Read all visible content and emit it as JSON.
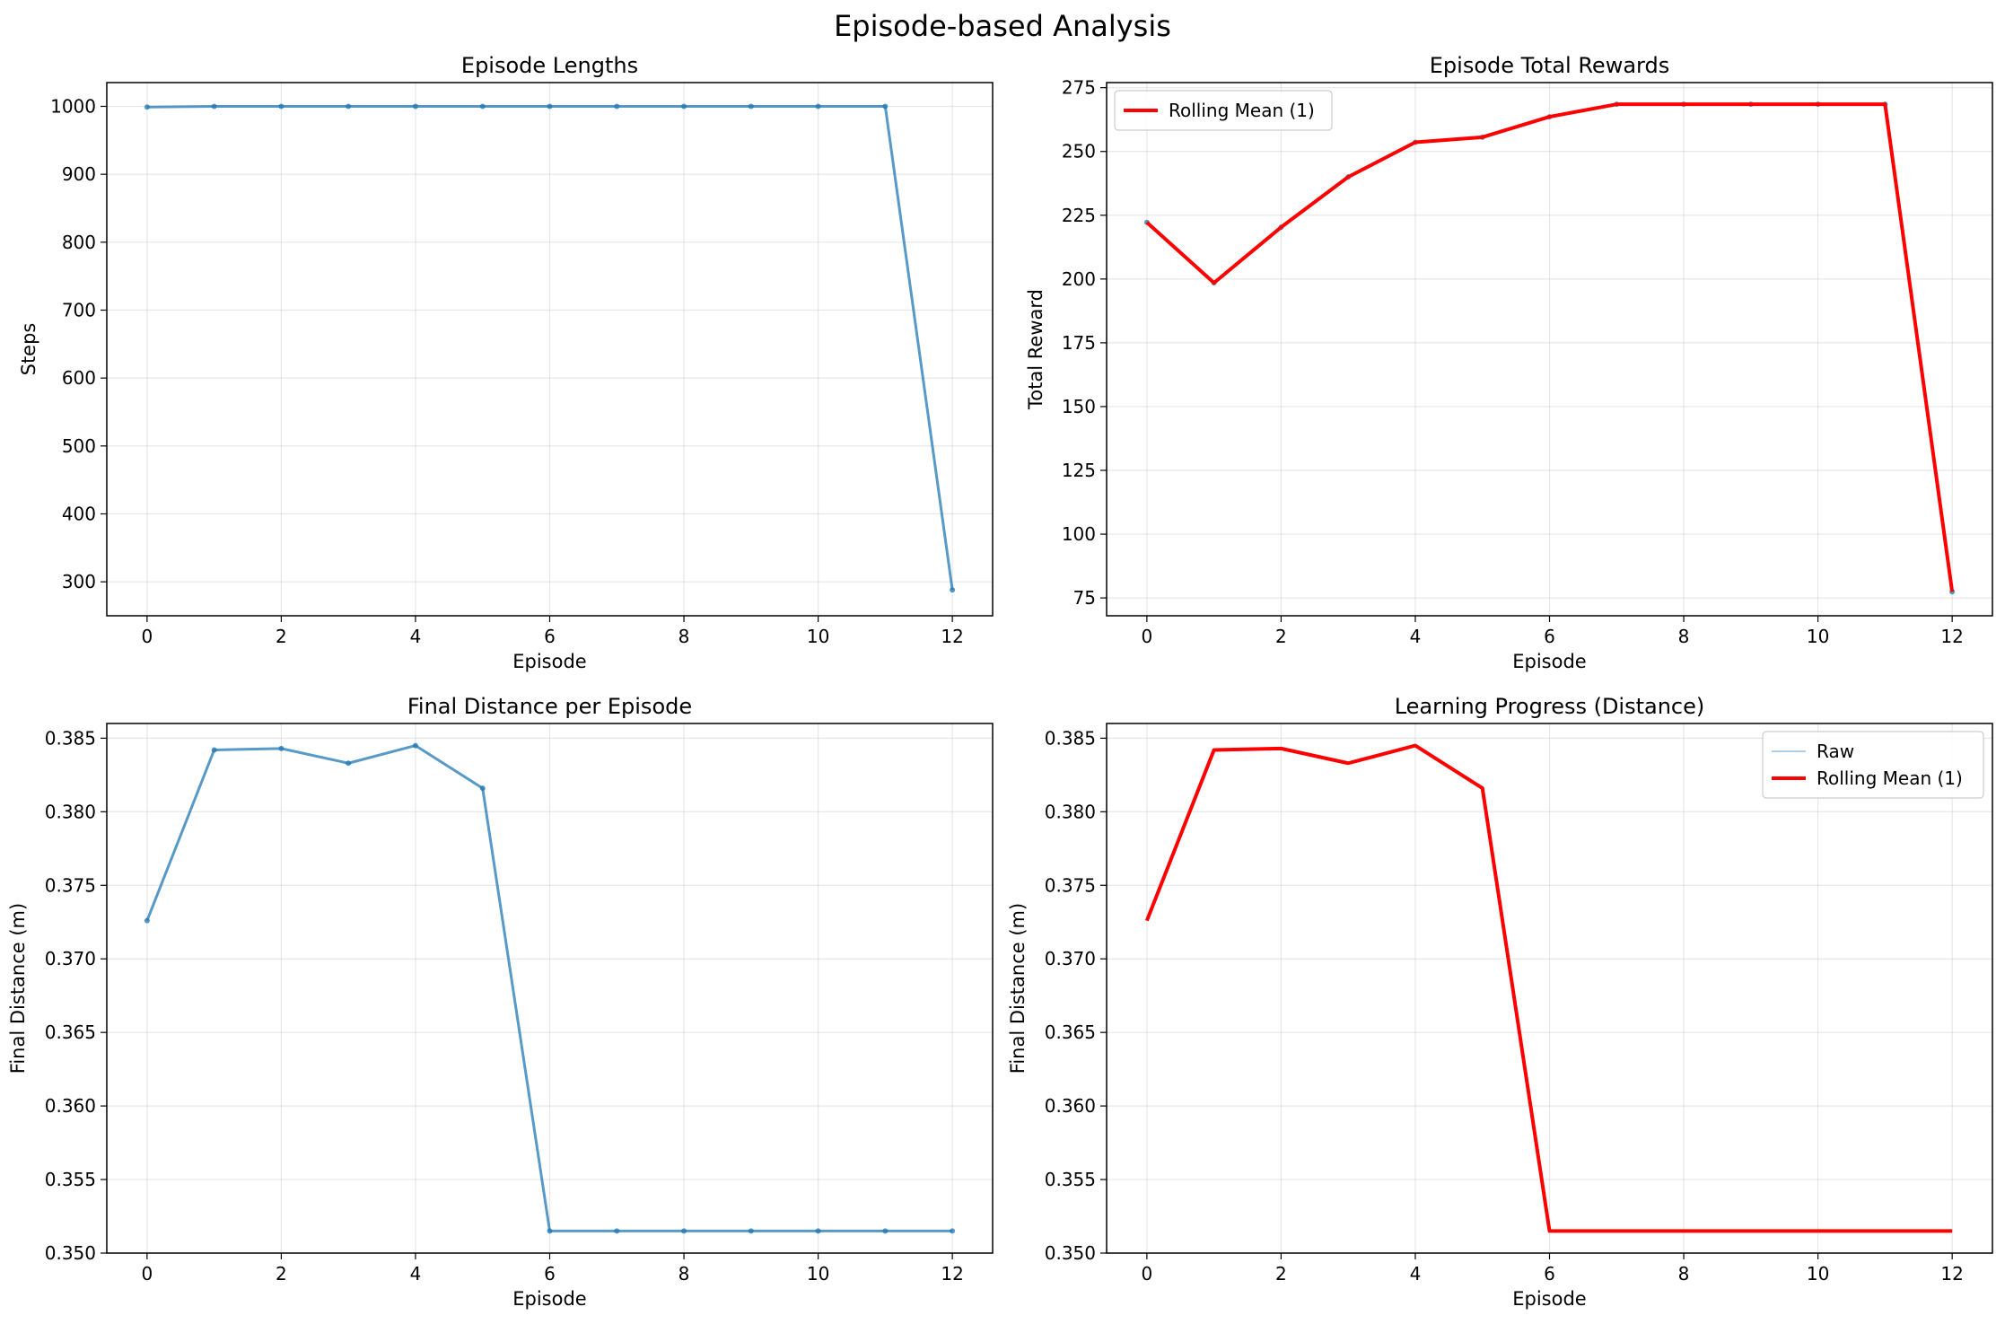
{
  "figure": {
    "suptitle": "Episode-based Analysis"
  },
  "chart_data": [
    {
      "type": "line",
      "title": "Episode Lengths",
      "xlabel": "Episode",
      "ylabel": "Steps",
      "xlim": [
        -0.6,
        12.6
      ],
      "ylim": [
        250,
        1035
      ],
      "xticks": [
        0,
        2,
        4,
        6,
        8,
        10,
        12
      ],
      "yticks": [
        300,
        400,
        500,
        600,
        700,
        800,
        900,
        1000
      ],
      "grid": true,
      "legend": null,
      "x": [
        0,
        1,
        2,
        3,
        4,
        5,
        6,
        7,
        8,
        9,
        10,
        11,
        12
      ],
      "series": [
        {
          "values": [
            999,
            1000,
            1000,
            1000,
            1000,
            1000,
            1000,
            1000,
            1000,
            1000,
            1000,
            1000,
            288
          ],
          "color": "#1f77b4",
          "opacity": 0.75,
          "width": 3,
          "markers": true
        }
      ]
    },
    {
      "type": "line",
      "title": "Episode Total Rewards",
      "xlabel": "Episode",
      "ylabel": "Total Reward",
      "xlim": [
        -0.6,
        12.6
      ],
      "ylim": [
        68,
        277
      ],
      "xticks": [
        0,
        2,
        4,
        6,
        8,
        10,
        12
      ],
      "yticks": [
        75,
        100,
        125,
        150,
        175,
        200,
        225,
        250,
        275
      ],
      "yticklabels_fmt": "int",
      "grid": true,
      "legend": "top-left",
      "x": [
        0,
        1,
        2,
        3,
        4,
        5,
        6,
        7,
        8,
        9,
        10,
        11,
        12
      ],
      "series": [
        {
          "values": [
            222.2,
            198.5,
            220.3,
            240.0,
            253.6,
            255.6,
            263.6,
            268.5,
            268.5,
            268.5,
            268.5,
            268.5,
            77.4
          ],
          "color": "#1f77b4",
          "opacity": 0.75,
          "width": 3,
          "markers": true
        },
        {
          "name": "Rolling Mean (1)",
          "values": [
            222.2,
            198.5,
            220.3,
            240.0,
            253.6,
            255.6,
            263.6,
            268.5,
            268.5,
            268.5,
            268.5,
            268.5,
            77.4
          ],
          "color": "#ff0000",
          "opacity": 1,
          "width": 4,
          "markers": false
        }
      ]
    },
    {
      "type": "line",
      "title": "Final Distance per Episode",
      "xlabel": "Episode",
      "ylabel": "Final Distance (m)",
      "xlim": [
        -0.6,
        12.6
      ],
      "ylim": [
        0.35,
        0.386
      ],
      "xticks": [
        0,
        2,
        4,
        6,
        8,
        10,
        12
      ],
      "yticks": [
        0.35,
        0.355,
        0.36,
        0.365,
        0.37,
        0.375,
        0.38,
        0.385
      ],
      "grid": true,
      "legend": null,
      "x": [
        0,
        1,
        2,
        3,
        4,
        5,
        6,
        7,
        8,
        9,
        10,
        11,
        12
      ],
      "series": [
        {
          "values": [
            0.3726,
            0.3842,
            0.3843,
            0.3833,
            0.3845,
            0.3816,
            0.3515,
            0.3515,
            0.3515,
            0.3515,
            0.3515,
            0.3515,
            0.3515
          ],
          "color": "#1f77b4",
          "opacity": 0.75,
          "width": 3,
          "markers": true
        }
      ]
    },
    {
      "type": "line",
      "title": "Learning Progress (Distance)",
      "xlabel": "Episode",
      "ylabel": "Final Distance (m)",
      "xlim": [
        -0.6,
        12.6
      ],
      "ylim": [
        0.35,
        0.386
      ],
      "xticks": [
        0,
        2,
        4,
        6,
        8,
        10,
        12
      ],
      "yticks": [
        0.35,
        0.355,
        0.36,
        0.365,
        0.37,
        0.375,
        0.38,
        0.385
      ],
      "grid": true,
      "legend": "top-right",
      "x": [
        0,
        1,
        2,
        3,
        4,
        5,
        6,
        7,
        8,
        9,
        10,
        11,
        12
      ],
      "series": [
        {
          "name": "Raw",
          "values": [
            0.3726,
            0.3842,
            0.3843,
            0.3833,
            0.3845,
            0.3816,
            0.3515,
            0.3515,
            0.3515,
            0.3515,
            0.3515,
            0.3515,
            0.3515
          ],
          "color": "#1f77b4",
          "opacity": 0.35,
          "width": 2,
          "markers": false
        },
        {
          "name": "Rolling Mean (1)",
          "values": [
            0.3726,
            0.3842,
            0.3843,
            0.3833,
            0.3845,
            0.3816,
            0.3515,
            0.3515,
            0.3515,
            0.3515,
            0.3515,
            0.3515,
            0.3515
          ],
          "color": "#ff0000",
          "opacity": 1,
          "width": 4,
          "markers": false
        }
      ]
    }
  ]
}
